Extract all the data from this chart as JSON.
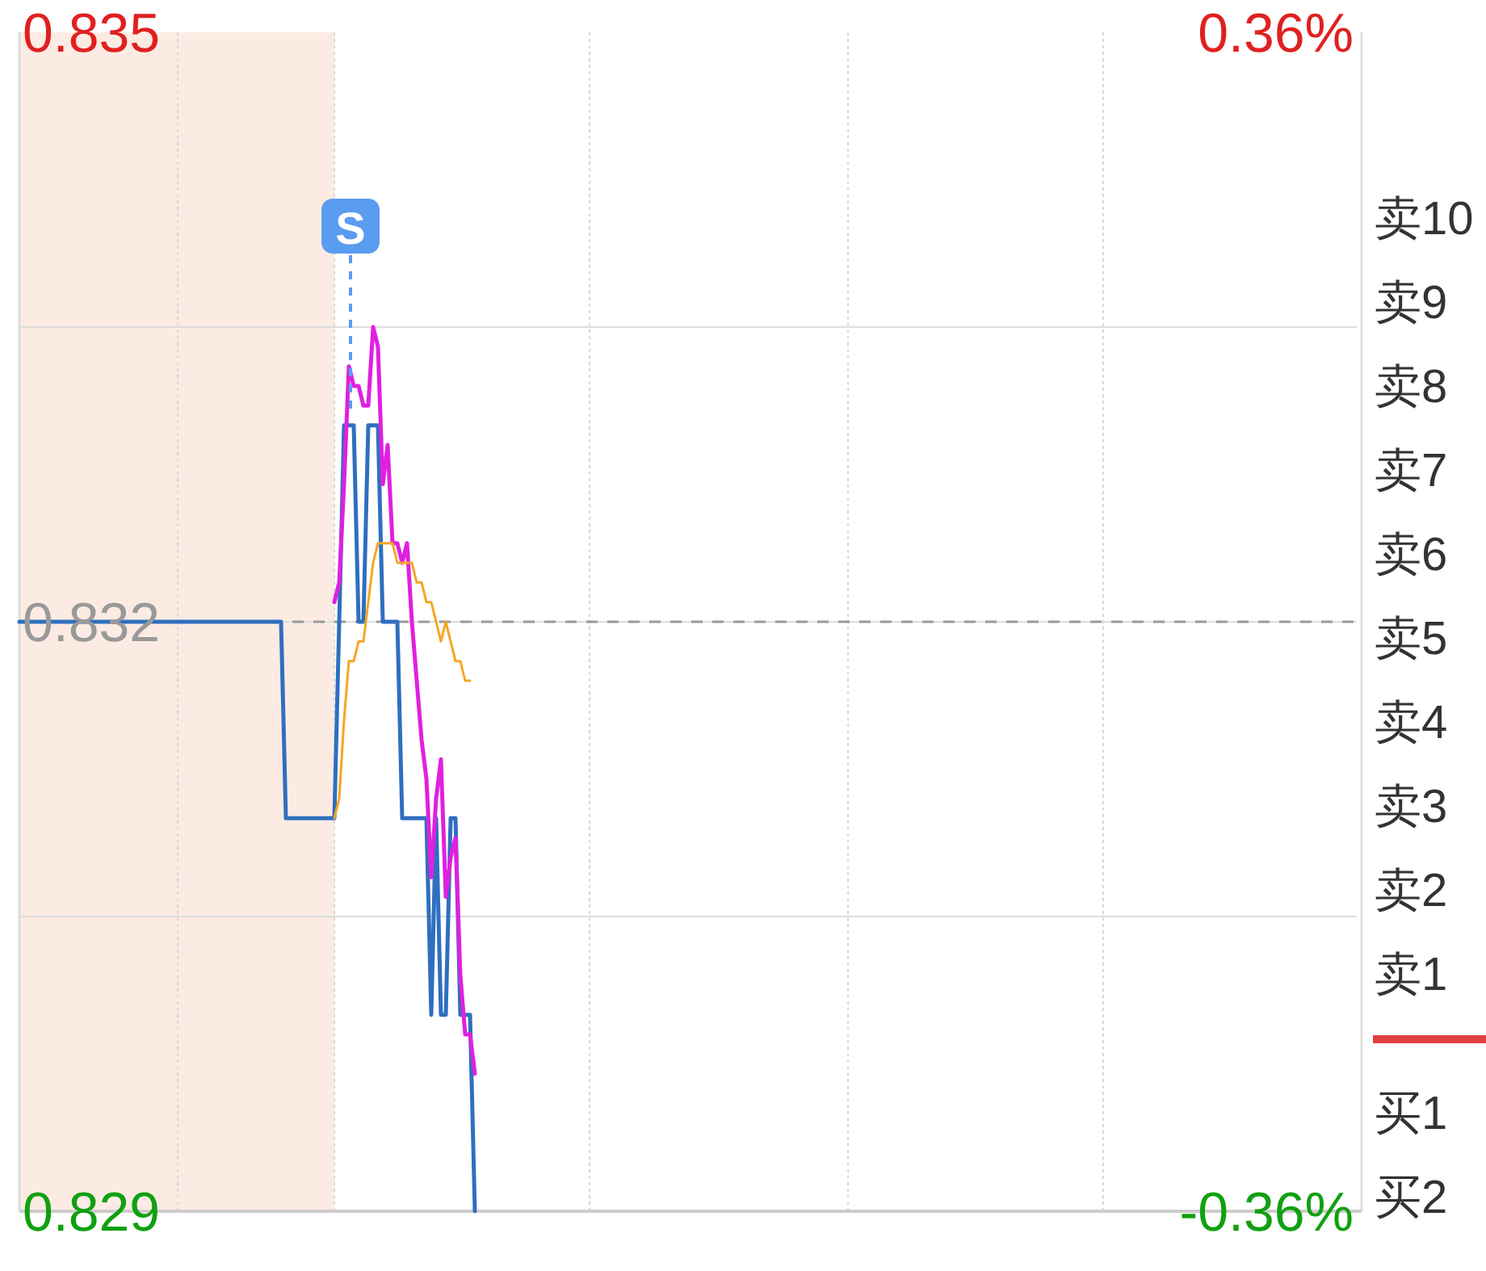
{
  "chart_data": [
    {
      "type": "line",
      "categories": [
        null,
        null,
        null,
        null,
        null,
        null,
        null,
        null,
        null,
        null,
        null,
        null,
        null,
        null,
        null,
        null,
        null,
        null,
        null,
        null,
        null,
        null,
        null,
        null,
        null,
        null,
        null,
        null,
        null,
        null,
        null,
        null,
        null,
        null,
        null,
        null,
        null,
        null,
        null,
        null,
        null,
        null,
        null,
        null,
        null,
        null,
        null,
        null,
        null,
        null,
        null,
        null,
        null,
        null,
        null,
        null,
        null,
        null,
        null,
        null,
        null,
        null,
        null,
        null,
        null,
        null,
        null,
        null,
        null,
        null,
        null,
        null,
        null,
        null,
        null,
        null,
        null,
        null,
        null,
        null,
        null,
        null,
        null,
        null,
        null,
        null,
        null,
        null,
        null,
        null,
        null,
        null,
        null,
        null,
        null,
        null,
        null,
        null,
        null,
        null,
        null,
        null,
        null,
        null,
        null,
        null,
        null,
        null,
        null,
        null,
        null,
        null,
        null,
        null,
        null,
        null,
        null,
        null,
        null,
        null,
        null,
        null,
        null,
        null,
        null,
        null,
        null,
        null,
        null,
        null,
        null,
        null,
        null,
        null,
        null,
        null,
        null,
        null,
        null,
        null,
        null,
        null,
        null,
        null,
        null,
        null,
        null,
        null,
        null,
        null,
        null,
        null,
        null,
        null,
        null,
        null,
        null,
        null,
        null,
        null,
        null,
        null,
        null,
        null,
        null,
        null,
        null,
        null,
        null,
        null,
        null,
        null,
        null,
        null,
        null,
        null,
        null,
        null,
        null,
        null,
        null,
        null,
        null,
        null,
        null,
        null,
        null,
        null,
        null,
        null,
        null,
        null,
        null,
        null,
        null,
        null,
        null,
        null,
        null,
        null,
        null,
        null,
        null,
        null,
        null,
        null,
        null,
        null,
        null,
        null,
        null,
        null,
        null,
        null,
        null,
        null,
        null,
        null,
        null,
        null,
        null,
        null,
        null,
        null,
        null,
        null,
        null,
        null,
        null,
        null,
        null,
        null,
        null,
        null,
        null,
        null,
        null,
        null,
        null,
        null,
        null,
        null,
        null,
        null,
        null,
        null,
        null,
        null,
        null,
        null,
        null,
        null,
        null,
        null,
        null,
        null,
        null,
        null,
        null,
        null,
        null,
        null,
        null,
        null,
        null,
        null,
        null,
        null,
        null,
        null,
        null,
        null,
        null,
        null,
        null,
        null,
        null
      ],
      "series": [
        {
          "color": "#2f6fbf",
          "values": [
            0.832,
            0.832,
            0.832,
            0.832,
            0.832,
            0.832,
            0.832,
            0.832,
            0.832,
            0.832,
            0.832,
            0.832,
            0.832,
            0.832,
            0.832,
            0.832,
            0.832,
            0.832,
            0.832,
            0.832,
            0.832,
            0.832,
            0.832,
            0.832,
            0.832,
            0.832,
            0.832,
            0.832,
            0.832,
            0.832,
            0.832,
            0.832,
            0.832,
            0.832,
            0.832,
            0.832,
            0.832,
            0.832,
            0.832,
            0.832,
            0.832,
            0.832,
            0.832,
            0.832,
            0.832,
            0.832,
            0.832,
            0.832,
            0.832,
            0.832,
            0.832,
            0.832,
            0.832,
            0.832,
            0.832,
            0.831,
            0.831,
            0.831,
            0.831,
            0.831,
            0.831,
            0.831,
            0.831,
            0.831,
            0.831,
            0.831,
            0.832,
            0.833,
            0.833,
            0.833,
            0.832,
            0.832,
            0.833,
            0.833,
            0.833,
            0.832,
            0.832,
            0.832,
            0.832,
            0.831,
            0.831,
            0.831,
            0.831,
            0.831,
            0.831,
            0.83,
            0.831,
            0.83,
            0.83,
            0.831,
            0.831,
            0.83,
            0.83,
            0.83,
            0.829,
            null,
            null,
            null,
            null,
            null,
            null,
            null,
            null,
            null,
            null,
            null,
            null,
            null,
            null,
            null,
            null,
            null,
            null,
            null,
            null,
            null,
            null,
            null,
            null,
            null,
            null,
            null,
            null,
            null,
            null,
            null,
            null,
            null,
            null,
            null,
            null,
            null,
            null,
            null,
            null,
            null,
            null,
            null,
            null,
            null,
            null,
            null,
            null,
            null,
            null,
            null,
            null,
            null,
            null,
            null,
            null,
            null,
            null,
            null,
            null,
            null,
            null,
            null,
            null,
            null,
            null,
            null,
            null,
            null,
            null,
            null,
            null,
            null,
            null,
            null,
            null,
            null,
            null,
            null,
            null,
            null,
            null,
            null,
            null,
            null,
            null,
            null,
            null,
            null,
            null,
            null,
            null,
            null,
            null,
            null,
            null,
            null,
            null,
            null,
            null,
            null,
            null,
            null,
            null,
            null,
            null,
            null,
            null,
            null,
            null,
            null,
            null,
            null,
            null,
            null,
            null,
            null,
            null,
            null,
            null,
            null,
            null,
            null,
            null,
            null,
            null,
            null,
            null,
            null,
            null,
            null,
            null,
            null,
            null,
            null,
            null,
            null,
            null,
            null,
            null,
            null,
            null,
            null,
            null,
            null,
            null,
            null,
            null,
            null,
            null,
            null,
            null,
            null,
            null,
            null,
            null,
            null,
            null,
            null,
            null,
            null,
            null,
            null,
            null,
            null,
            null,
            null,
            null,
            null,
            null,
            null,
            null,
            null,
            null,
            null,
            null,
            null,
            null,
            null,
            null,
            null,
            null
          ]
        },
        {
          "color": "#e020e0",
          "values": [
            null,
            null,
            null,
            null,
            null,
            null,
            null,
            null,
            null,
            null,
            null,
            null,
            null,
            null,
            null,
            null,
            null,
            null,
            null,
            null,
            null,
            null,
            null,
            null,
            null,
            null,
            null,
            null,
            null,
            null,
            null,
            null,
            null,
            null,
            null,
            null,
            null,
            null,
            null,
            null,
            null,
            null,
            null,
            null,
            null,
            null,
            null,
            null,
            null,
            null,
            null,
            null,
            null,
            null,
            null,
            null,
            null,
            null,
            null,
            null,
            null,
            null,
            null,
            null,
            null,
            0.8321,
            0.8322,
            0.8327,
            0.8333,
            0.8332,
            0.8332,
            0.8331,
            0.8331,
            0.8335,
            0.8334,
            0.8327,
            0.8329,
            0.8324,
            0.8324,
            0.8323,
            0.8324,
            0.832,
            0.8317,
            0.8314,
            0.8312,
            0.8307,
            0.8311,
            0.8313,
            0.8306,
            0.8308,
            0.8309,
            0.8302,
            0.8299,
            0.8299,
            0.8297,
            null,
            null,
            null,
            null,
            null,
            null,
            null,
            null,
            null,
            null,
            null,
            null,
            null,
            null,
            null,
            null,
            null,
            null,
            null,
            null,
            null,
            null,
            null,
            null,
            null,
            null,
            null,
            null,
            null,
            null,
            null,
            null,
            null,
            null,
            null,
            null,
            null,
            null,
            null,
            null,
            null,
            null,
            null,
            null,
            null,
            null,
            null,
            null,
            null,
            null,
            null,
            null,
            null,
            null,
            null,
            null,
            null,
            null,
            null,
            null,
            null,
            null,
            null,
            null,
            null,
            null,
            null,
            null,
            null,
            null,
            null,
            null,
            null,
            null,
            null,
            null,
            null,
            null,
            null,
            null,
            null,
            null,
            null,
            null,
            null,
            null,
            null,
            null,
            null,
            null,
            null,
            null,
            null,
            null,
            null,
            null,
            null,
            null,
            null,
            null,
            null,
            null,
            null,
            null,
            null,
            null,
            null,
            null,
            null,
            null,
            null,
            null,
            null,
            null,
            null,
            null,
            null,
            null,
            null,
            null,
            null,
            null,
            null,
            null,
            null,
            null,
            null,
            null,
            null,
            null,
            null,
            null,
            null,
            null,
            null,
            null,
            null,
            null,
            null,
            null,
            null,
            null,
            null,
            null,
            null,
            null,
            null,
            null,
            null,
            null,
            null,
            null,
            null,
            null,
            null,
            null,
            null,
            null,
            null,
            null,
            null,
            null,
            null,
            null,
            null,
            null,
            null,
            null,
            null,
            null,
            null,
            null,
            null,
            null,
            null,
            null,
            null,
            null,
            null,
            null,
            null,
            null
          ]
        },
        {
          "color": "#f5a623",
          "values": [
            null,
            null,
            null,
            null,
            null,
            null,
            null,
            null,
            null,
            null,
            null,
            null,
            null,
            null,
            null,
            null,
            null,
            null,
            null,
            null,
            null,
            null,
            null,
            null,
            null,
            null,
            null,
            null,
            null,
            null,
            null,
            null,
            null,
            null,
            null,
            null,
            null,
            null,
            null,
            null,
            null,
            null,
            null,
            null,
            null,
            null,
            null,
            null,
            null,
            null,
            null,
            null,
            null,
            null,
            null,
            null,
            null,
            null,
            null,
            null,
            null,
            null,
            null,
            null,
            null,
            0.831,
            0.8311,
            0.8315,
            0.8318,
            0.8318,
            0.8319,
            0.8319,
            0.8321,
            0.8323,
            0.8324,
            0.8324,
            0.8324,
            0.8324,
            0.8323,
            0.8323,
            0.8323,
            0.8323,
            0.8322,
            0.8322,
            0.8321,
            0.8321,
            0.832,
            0.8319,
            0.832,
            0.8319,
            0.8318,
            0.8318,
            0.8317,
            0.8317,
            null,
            null,
            null,
            null,
            null,
            null,
            null,
            null,
            null,
            null,
            null,
            null,
            null,
            null,
            null,
            null,
            null,
            null,
            null,
            null,
            null,
            null,
            null,
            null,
            null,
            null,
            null,
            null,
            null,
            null,
            null,
            null,
            null,
            null,
            null,
            null,
            null,
            null,
            null,
            null,
            null,
            null,
            null,
            null,
            null,
            null,
            null,
            null,
            null,
            null,
            null,
            null,
            null,
            null,
            null,
            null,
            null,
            null,
            null,
            null,
            null,
            null,
            null,
            null,
            null,
            null,
            null,
            null,
            null,
            null,
            null,
            null,
            null,
            null,
            null,
            null,
            null,
            null,
            null,
            null,
            null,
            null,
            null,
            null,
            null,
            null,
            null,
            null,
            null,
            null,
            null,
            null,
            null,
            null,
            null,
            null,
            null,
            null,
            null,
            null,
            null,
            null,
            null,
            null,
            null,
            null,
            null,
            null,
            null,
            null,
            null,
            null,
            null,
            null,
            null,
            null,
            null,
            null,
            null,
            null,
            null,
            null,
            null,
            null,
            null,
            null,
            null,
            null,
            null,
            null,
            null,
            null,
            null,
            null,
            null,
            null,
            null,
            null,
            null,
            null,
            null,
            null,
            null,
            null,
            null,
            null,
            null,
            null,
            null,
            null,
            null,
            null,
            null,
            null,
            null,
            null,
            null,
            null,
            null,
            null,
            null,
            null,
            null,
            null,
            null,
            null,
            null,
            null,
            null,
            null,
            null,
            null,
            null,
            null,
            null,
            null,
            null,
            null,
            null,
            null,
            null,
            null,
            null
          ]
        }
      ],
      "ylim": [
        0.829,
        0.835
      ],
      "yticks": [
        {
          "value": 0.835,
          "label": "0.835"
        },
        {
          "value": 0.8335,
          "label": null
        },
        {
          "value": 0.832,
          "label": "0.832"
        },
        {
          "value": 0.8305,
          "label": null
        },
        {
          "value": 0.829,
          "label": "0.829"
        }
      ],
      "y2lim": [
        -0.36,
        0.36
      ],
      "y2ticks": [
        {
          "value": 0.36,
          "label": "0.36%"
        },
        {
          "value": -0.36,
          "label": "-0.36%"
        }
      ],
      "ref_lines": [
        {
          "axis": "y",
          "value": 0.832,
          "color": "#999999",
          "line_style": "dashed"
        }
      ],
      "annotations": [
        "S"
      ],
      "grid": true,
      "marker": "none",
      "line_style": "solid"
    },
    {
      "type": "other",
      "annotations": [
        "卖10",
        "卖9",
        "卖8",
        "卖7",
        "卖6",
        "卖5",
        "卖4",
        "卖3",
        "卖2",
        "卖1",
        "买1",
        "买2"
      ]
    }
  ]
}
